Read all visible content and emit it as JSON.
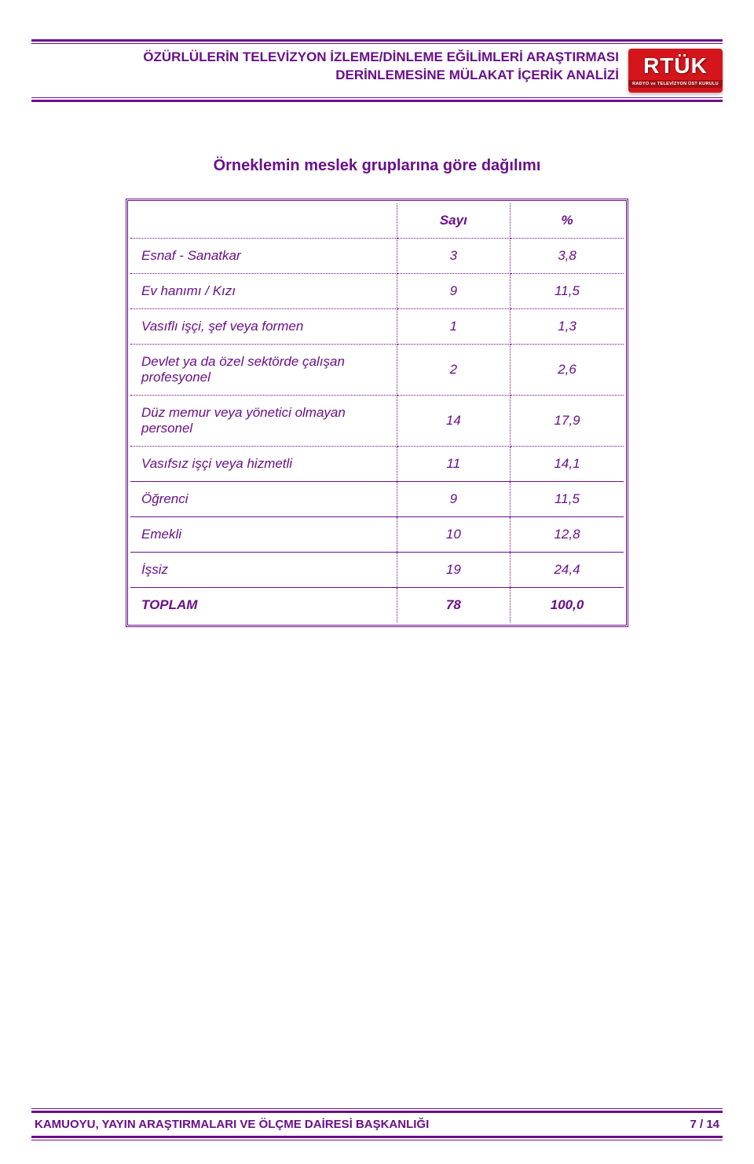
{
  "colors": {
    "primary": "#6a0f8a",
    "text": "#6a0f8a",
    "logo_bg": "#d4151b",
    "logo_text": "#ffffff",
    "table_border": "#6a0f8a"
  },
  "header": {
    "line1": "ÖZÜRLÜLERİN TELEVİZYON İZLEME/DİNLEME EĞİLİMLERİ ARAŞTIRMASI",
    "line2": "DERİNLEMESİNE MÜLAKAT İÇERİK ANALİZİ",
    "logo_main": "RTÜK",
    "logo_sub": "RADYO ve TELEVİZYON ÜST KURULU"
  },
  "table": {
    "title": "Örneklemin meslek gruplarına göre dağılımı",
    "col1": "",
    "col2": "Sayı",
    "col3": "%",
    "rows": [
      {
        "label": "Esnaf - Sanatkar",
        "count": "3",
        "pct": "3,8",
        "solid": false
      },
      {
        "label": "Ev hanımı / Kızı",
        "count": "9",
        "pct": "11,5",
        "solid": false
      },
      {
        "label": "Vasıflı işçi, şef veya formen",
        "count": "1",
        "pct": "1,3",
        "solid": false
      },
      {
        "label": "Devlet ya da özel sektörde çalışan profesyonel",
        "count": "2",
        "pct": "2,6",
        "solid": false
      },
      {
        "label": "Düz memur veya yönetici olmayan personel",
        "count": "14",
        "pct": "17,9",
        "solid": false
      },
      {
        "label": "Vasıfsız işçi veya hizmetli",
        "count": "11",
        "pct": "14,1",
        "solid": false
      },
      {
        "label": "Öğrenci",
        "count": "9",
        "pct": "11,5",
        "solid": true
      },
      {
        "label": "Emekli",
        "count": "10",
        "pct": "12,8",
        "solid": true
      },
      {
        "label": "İşsiz",
        "count": "19",
        "pct": "24,4",
        "solid": true
      }
    ],
    "total": {
      "label": "TOPLAM",
      "count": "78",
      "pct": "100,0"
    }
  },
  "footer": {
    "left": "KAMUOYU, YAYIN ARAŞTIRMALARI VE ÖLÇME DAİRESİ BAŞKANLIĞI",
    "page_current": "7",
    "page_sep": " / ",
    "page_total": "14"
  }
}
